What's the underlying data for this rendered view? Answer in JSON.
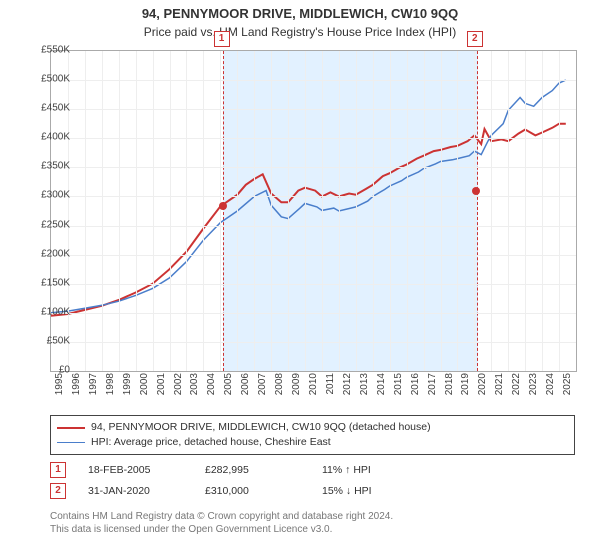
{
  "title": {
    "main": "94, PENNYMOOR DRIVE, MIDDLEWICH, CW10 9QQ",
    "sub": "Price paid vs. HM Land Registry's House Price Index (HPI)",
    "main_fontsize": 13,
    "sub_fontsize": 12
  },
  "chart": {
    "plot_bg": "#ffffff",
    "border_color": "#aaaaaa",
    "grid_color": "#eeeeee",
    "xlim": [
      1995,
      2026
    ],
    "ylim": [
      0,
      550000
    ],
    "ytick_step": 50000,
    "ytick_labels": [
      "£0",
      "£50K",
      "£100K",
      "£150K",
      "£200K",
      "£250K",
      "£300K",
      "£350K",
      "£400K",
      "£450K",
      "£500K",
      "£550K"
    ],
    "xticks": [
      1995,
      1996,
      1997,
      1998,
      1999,
      2000,
      2001,
      2002,
      2003,
      2004,
      2005,
      2006,
      2007,
      2008,
      2009,
      2010,
      2011,
      2012,
      2013,
      2014,
      2015,
      2016,
      2017,
      2018,
      2019,
      2020,
      2021,
      2022,
      2023,
      2024,
      2025
    ],
    "series": [
      {
        "id": "property",
        "label": "94, PENNYMOOR DRIVE, MIDDLEWICH, CW10 9QQ (detached house)",
        "color": "#cc3333",
        "line_width": 2,
        "data": [
          [
            1995,
            95000
          ],
          [
            1996,
            98000
          ],
          [
            1997,
            105000
          ],
          [
            1998,
            112000
          ],
          [
            1999,
            122000
          ],
          [
            2000,
            135000
          ],
          [
            2001,
            150000
          ],
          [
            2002,
            175000
          ],
          [
            2003,
            205000
          ],
          [
            2004,
            245000
          ],
          [
            2005,
            283000
          ],
          [
            2006,
            303000
          ],
          [
            2006.5,
            320000
          ],
          [
            2007,
            330000
          ],
          [
            2007.5,
            338000
          ],
          [
            2008,
            305000
          ],
          [
            2008.6,
            290000
          ],
          [
            2009,
            290000
          ],
          [
            2009.6,
            310000
          ],
          [
            2010,
            315000
          ],
          [
            2010.6,
            310000
          ],
          [
            2011,
            300000
          ],
          [
            2011.5,
            307000
          ],
          [
            2012,
            300000
          ],
          [
            2012.6,
            305000
          ],
          [
            2013,
            303000
          ],
          [
            2013.6,
            313000
          ],
          [
            2014,
            320000
          ],
          [
            2014.6,
            335000
          ],
          [
            2015,
            340000
          ],
          [
            2015.6,
            350000
          ],
          [
            2016,
            355000
          ],
          [
            2016.6,
            365000
          ],
          [
            2017,
            370000
          ],
          [
            2017.6,
            378000
          ],
          [
            2018,
            380000
          ],
          [
            2018.6,
            385000
          ],
          [
            2019,
            387000
          ],
          [
            2019.6,
            395000
          ],
          [
            2020,
            405000
          ],
          [
            2020.4,
            390000
          ],
          [
            2020.6,
            416000
          ],
          [
            2021,
            395000
          ],
          [
            2021.6,
            398000
          ],
          [
            2022,
            395000
          ],
          [
            2022.6,
            408000
          ],
          [
            2023,
            415000
          ],
          [
            2023.6,
            405000
          ],
          [
            2024,
            410000
          ],
          [
            2024.6,
            418000
          ],
          [
            2025,
            425000
          ],
          [
            2025.4,
            425000
          ]
        ]
      },
      {
        "id": "hpi",
        "label": "HPI: Average price, detached house, Cheshire East",
        "color": "#4a7ecb",
        "line_width": 1.5,
        "data": [
          [
            1995,
            100000
          ],
          [
            1996,
            103000
          ],
          [
            1997,
            108000
          ],
          [
            1998,
            113000
          ],
          [
            1999,
            120000
          ],
          [
            2000,
            130000
          ],
          [
            2001,
            142000
          ],
          [
            2002,
            160000
          ],
          [
            2003,
            188000
          ],
          [
            2004,
            225000
          ],
          [
            2005,
            255000
          ],
          [
            2006,
            275000
          ],
          [
            2007,
            300000
          ],
          [
            2007.7,
            310000
          ],
          [
            2008,
            285000
          ],
          [
            2008.6,
            265000
          ],
          [
            2009,
            262000
          ],
          [
            2009.7,
            280000
          ],
          [
            2010,
            288000
          ],
          [
            2010.7,
            282000
          ],
          [
            2011,
            276000
          ],
          [
            2011.7,
            280000
          ],
          [
            2012,
            275000
          ],
          [
            2012.7,
            280000
          ],
          [
            2013,
            282000
          ],
          [
            2013.7,
            292000
          ],
          [
            2014,
            300000
          ],
          [
            2014.7,
            312000
          ],
          [
            2015,
            318000
          ],
          [
            2015.7,
            327000
          ],
          [
            2016,
            333000
          ],
          [
            2016.7,
            342000
          ],
          [
            2017,
            348000
          ],
          [
            2017.7,
            356000
          ],
          [
            2018,
            360000
          ],
          [
            2018.7,
            363000
          ],
          [
            2019,
            365000
          ],
          [
            2019.7,
            370000
          ],
          [
            2020,
            378000
          ],
          [
            2020.4,
            372000
          ],
          [
            2020.8,
            395000
          ],
          [
            2021,
            405000
          ],
          [
            2021.7,
            425000
          ],
          [
            2022,
            448000
          ],
          [
            2022.7,
            470000
          ],
          [
            2023,
            460000
          ],
          [
            2023.5,
            455000
          ],
          [
            2024,
            470000
          ],
          [
            2024.6,
            482000
          ],
          [
            2025,
            495000
          ],
          [
            2025.4,
            500000
          ]
        ]
      }
    ],
    "shade": {
      "start": 2005.13,
      "end": 2020.08,
      "fill": "rgba(173,216,255,0.35)",
      "dash_color": "#cc3333"
    },
    "markers": [
      {
        "num": "1",
        "x": 2005.13,
        "box_color": "#cc3333"
      },
      {
        "num": "2",
        "x": 2020.08,
        "box_color": "#cc3333"
      }
    ],
    "sale_points": [
      {
        "x": 2005.13,
        "y": 282995,
        "color": "#cc3333"
      },
      {
        "x": 2020.08,
        "y": 310000,
        "color": "#cc3333"
      }
    ]
  },
  "legend": {
    "border_color": "#444444"
  },
  "sales": {
    "rows": [
      {
        "num": "1",
        "date": "18-FEB-2005",
        "price": "£282,995",
        "delta": "11% ↑ HPI"
      },
      {
        "num": "2",
        "date": "31-JAN-2020",
        "price": "£310,000",
        "delta": "15% ↓ HPI"
      }
    ]
  },
  "footer": {
    "line1": "Contains HM Land Registry data © Crown copyright and database right 2024.",
    "line2": "This data is licensed under the Open Government Licence v3.0.",
    "color": "#777777"
  }
}
